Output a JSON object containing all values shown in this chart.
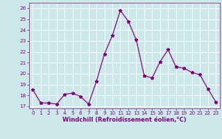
{
  "x": [
    0,
    1,
    2,
    3,
    4,
    5,
    6,
    7,
    8,
    9,
    10,
    11,
    12,
    13,
    14,
    15,
    16,
    17,
    18,
    19,
    20,
    21,
    22,
    23
  ],
  "y": [
    18.5,
    17.3,
    17.3,
    17.2,
    18.1,
    18.2,
    17.9,
    17.2,
    19.3,
    21.8,
    23.5,
    25.8,
    24.8,
    23.1,
    19.8,
    19.6,
    21.1,
    22.2,
    20.6,
    20.5,
    20.1,
    19.9,
    18.6,
    17.4
  ],
  "line_color": "#800080",
  "marker": "*",
  "marker_size": 3.5,
  "xlim": [
    -0.5,
    23.5
  ],
  "ylim": [
    16.8,
    26.5
  ],
  "yticks": [
    17,
    18,
    19,
    20,
    21,
    22,
    23,
    24,
    25,
    26
  ],
  "xticks": [
    0,
    1,
    2,
    3,
    4,
    5,
    6,
    7,
    8,
    9,
    10,
    11,
    12,
    13,
    14,
    15,
    16,
    17,
    18,
    19,
    20,
    21,
    22,
    23
  ],
  "bg_color": "#cce8e8",
  "grid_color": "#ffffff",
  "tick_color": "#800080",
  "label_color": "#800080",
  "tick_fontsize": 5.2,
  "xlabel": "Windchill (Refroidissement éolien,°C)",
  "xlabel_fontsize": 6.0,
  "line_width": 0.9
}
